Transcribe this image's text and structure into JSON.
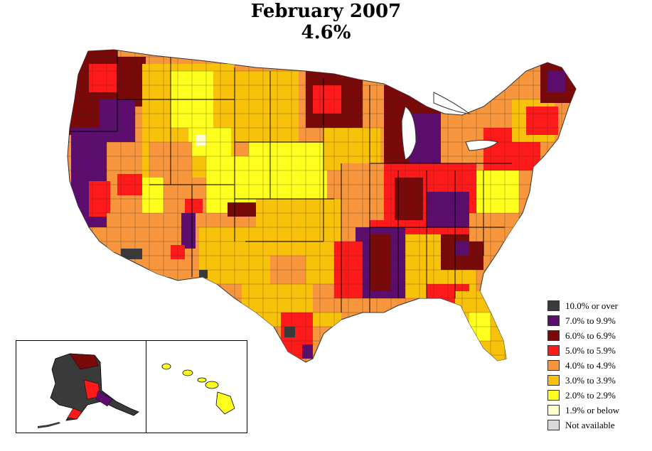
{
  "title": {
    "line1": "February 2007",
    "line2": "4.6%"
  },
  "map": {
    "region": "United States counties",
    "insets": [
      "Alaska",
      "Hawaii"
    ]
  },
  "legend": {
    "items": [
      {
        "label": "10.0% or over",
        "color": "#3a3a3a"
      },
      {
        "label": "7.0% to 9.9%",
        "color": "#5c0d6e"
      },
      {
        "label": "6.0% to 6.9%",
        "color": "#7a0a0a"
      },
      {
        "label": "5.0% to 5.9%",
        "color": "#ff1a1a"
      },
      {
        "label": "4.0% to 4.9%",
        "color": "#f7963c"
      },
      {
        "label": "3.0% to 3.9%",
        "color": "#f9c20a"
      },
      {
        "label": "2.0% to 2.9%",
        "color": "#ffff1e"
      },
      {
        "label": "1.9% or below",
        "color": "#ffffcc"
      },
      {
        "label": "Not available",
        "color": "#d9d9d9"
      }
    ]
  },
  "colors": {
    "border": "#333333",
    "background": "#ffffff"
  }
}
